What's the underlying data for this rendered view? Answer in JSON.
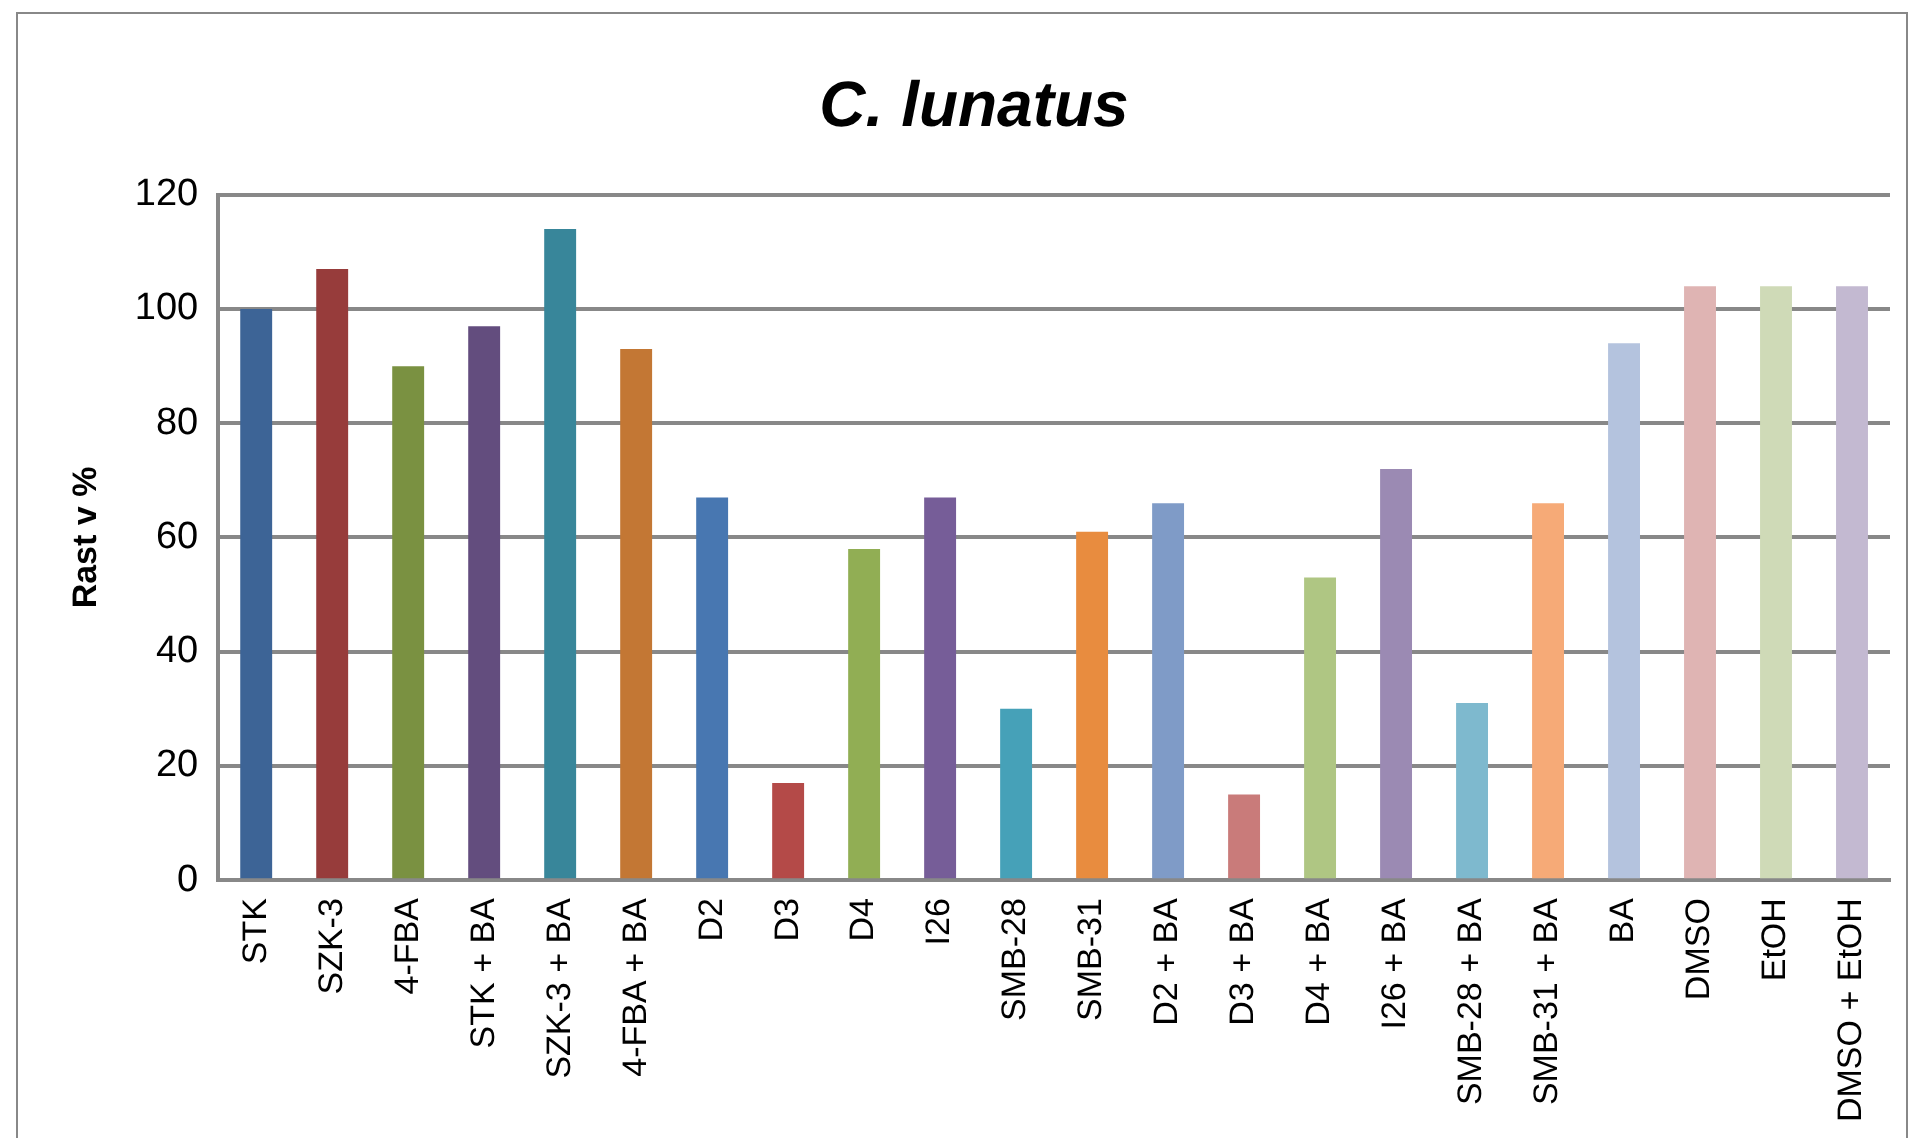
{
  "chart_data": {
    "type": "bar",
    "title": "C. lunatus",
    "ylabel": "Rast v %",
    "categories": [
      "STK",
      "SZK-3",
      "4-FBA",
      "STK + BA",
      "SZK-3 + BA",
      "4-FBA + BA",
      "D2",
      "D3",
      "D4",
      "I26",
      "SMB-28",
      "SMB-31",
      "D2 + BA",
      "D3 + BA",
      "D4 + BA",
      "I26 + BA",
      "SMB-28 + BA",
      "SMB-31 + BA",
      "BA",
      "DMSO",
      "EtOH",
      "DMSO + EtOH"
    ],
    "values": [
      100,
      107,
      90,
      97,
      114,
      93,
      67,
      17,
      58,
      67,
      30,
      61,
      66,
      15,
      53,
      72,
      31,
      66,
      94,
      104,
      104,
      104
    ],
    "colors": [
      "#3d6496",
      "#973c3b",
      "#7a9141",
      "#634d7e",
      "#38869a",
      "#c37734",
      "#4877b1",
      "#b44a48",
      "#91ae54",
      "#765d98",
      "#46a1b8",
      "#e88c3f",
      "#7f9bc7",
      "#c97b7a",
      "#afc683",
      "#9b8ab3",
      "#7eb9ce",
      "#f6aa77",
      "#b4c3de",
      "#dfb4b3",
      "#cfdab7",
      "#c3b9d1"
    ],
    "ylim": [
      0,
      120
    ],
    "yticks": [
      0,
      20,
      40,
      60,
      80,
      100,
      120
    ],
    "grid": "y",
    "legend": false
  }
}
